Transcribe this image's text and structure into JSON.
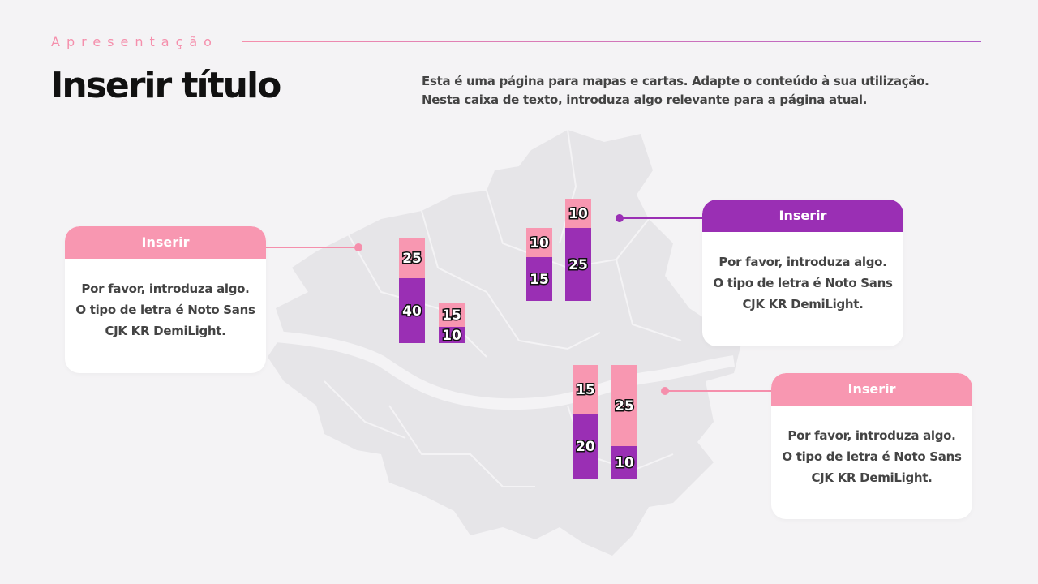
{
  "header": {
    "eyebrow": "Apresentação",
    "title": "Inserir título",
    "description": [
      "Esta é uma página para mapas e cartas. Adapte o conteúdo à sua utilização.",
      "Nesta caixa de texto, introduza algo relevante para a página atual."
    ]
  },
  "callouts": [
    {
      "title": "Inserir",
      "color": "#f897b1",
      "lines": [
        "Por favor, introduza algo.",
        "O tipo de letra é Noto Sans",
        "CJK KR DemiLight."
      ]
    },
    {
      "title": "Inserir",
      "color": "#9a2fb4",
      "lines": [
        "Por favor, introduza algo.",
        "O tipo de letra é Noto Sans",
        "CJK KR DemiLight."
      ]
    },
    {
      "title": "Inserir",
      "color": "#f897b1",
      "lines": [
        "Por favor, introduza algo.",
        "O tipo de letra é Noto Sans",
        "CJK KR DemiLight."
      ]
    }
  ],
  "segment_colors": [
    "#9a2fb4",
    "#f897b1"
  ],
  "bars": [
    {
      "values": [
        40,
        25
      ]
    },
    {
      "values": [
        10,
        15
      ]
    },
    {
      "values": [
        15,
        10
      ]
    },
    {
      "values": [
        25,
        10
      ]
    },
    {
      "values": [
        20,
        15
      ]
    },
    {
      "values": [
        10,
        25
      ]
    }
  ]
}
